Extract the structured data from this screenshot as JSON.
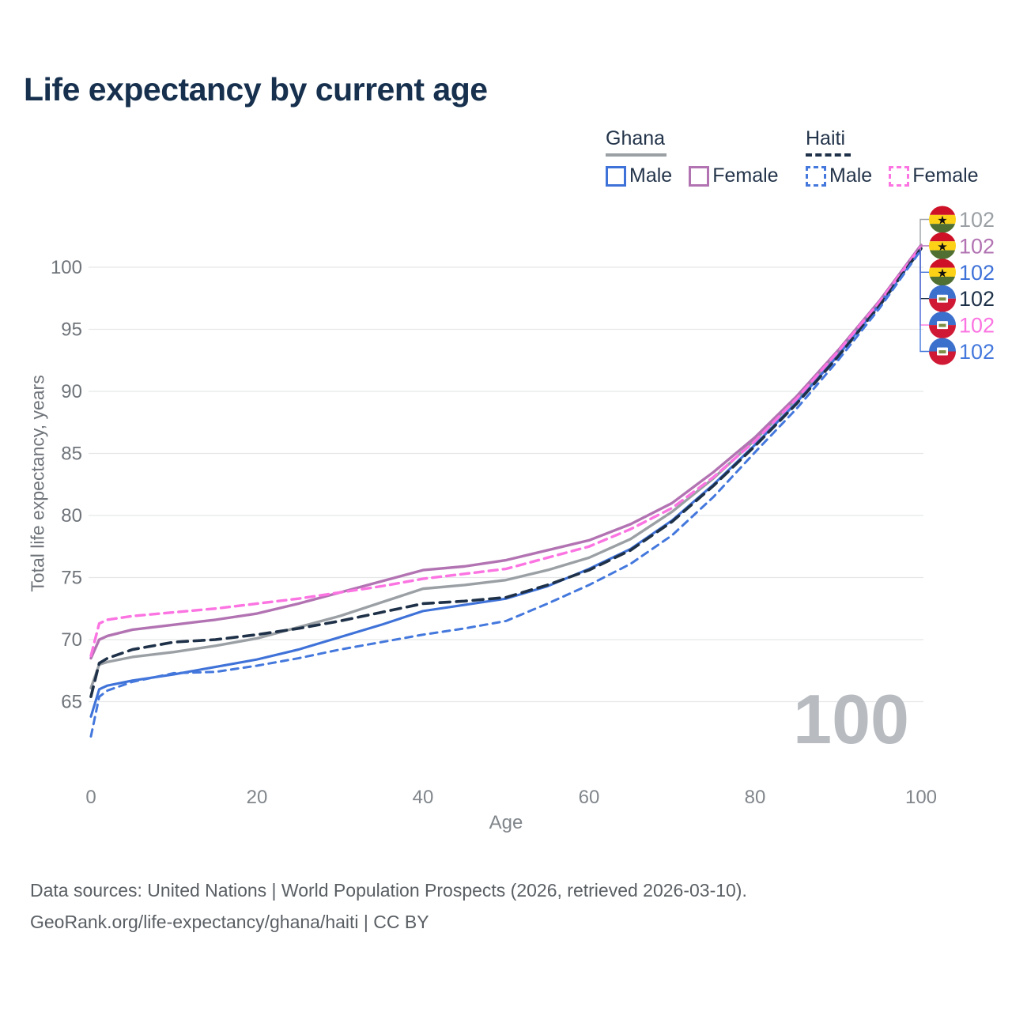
{
  "title": "Life expectancy by current age",
  "watermark": "100",
  "legend": {
    "groups": [
      {
        "label": "Ghana",
        "style": "solid",
        "items": [
          {
            "label": "Male"
          },
          {
            "label": "Female"
          }
        ]
      },
      {
        "label": "Haiti",
        "style": "dashed",
        "items": [
          {
            "label": "Male"
          },
          {
            "label": "Female"
          }
        ]
      }
    ]
  },
  "footer": {
    "line1": "Data sources: United Nations | World Population Prospects (2026, retrieved 2026-03-10).",
    "line2": "GeoRank.org/life-expectancy/ghana/haiti | CC BY"
  },
  "colors": {
    "ghana_all": "#9ba0a5",
    "ghana_female": "#b273b2",
    "ghana_male": "#3f72d8",
    "haiti_all": "#1e3148",
    "haiti_female": "#fb74e2",
    "haiti_male": "#4478dd",
    "grid": "#e5e6e8",
    "axis_text": "#81868b",
    "title_text": "#16304e",
    "watermark": "#b8bcc1"
  },
  "chart_data": {
    "type": "line",
    "title": "Life expectancy by current age",
    "xlabel": "Age",
    "ylabel": "Total life expectancy, years",
    "xlim": [
      0,
      100
    ],
    "ylim": [
      62,
      102
    ],
    "x_ticks": [
      0,
      20,
      40,
      60,
      80,
      100
    ],
    "y_ticks": [
      65,
      70,
      75,
      80,
      85,
      90,
      95,
      100
    ],
    "grid": true,
    "legend_position": "top-right",
    "x": [
      0,
      1,
      2,
      5,
      10,
      15,
      20,
      25,
      30,
      35,
      40,
      45,
      50,
      55,
      60,
      65,
      70,
      75,
      80,
      85,
      90,
      95,
      100
    ],
    "series": [
      {
        "name": "Ghana",
        "sex": "all",
        "flag": "ghana",
        "style": "solid",
        "color_key": "ghana_all",
        "end_label": "102",
        "values": [
          66.1,
          68.0,
          68.2,
          68.6,
          69.0,
          69.5,
          70.1,
          71.0,
          71.9,
          73.0,
          74.1,
          74.4,
          74.8,
          75.6,
          76.6,
          78.1,
          80.3,
          83.0,
          86.1,
          89.4,
          93.1,
          97.1,
          101.6
        ]
      },
      {
        "name": "Ghana Female",
        "sex": "female",
        "flag": "ghana",
        "style": "solid",
        "color_key": "ghana_female",
        "end_label": "102",
        "values": [
          68.5,
          70.0,
          70.3,
          70.8,
          71.2,
          71.6,
          72.1,
          72.9,
          73.8,
          74.7,
          75.6,
          75.9,
          76.4,
          77.2,
          78.0,
          79.3,
          81.0,
          83.5,
          86.3,
          89.6,
          93.3,
          97.3,
          101.8
        ]
      },
      {
        "name": "Ghana Male",
        "sex": "male",
        "flag": "ghana",
        "style": "solid",
        "color_key": "ghana_male",
        "end_label": "102",
        "values": [
          63.8,
          66.0,
          66.3,
          66.7,
          67.2,
          67.8,
          68.4,
          69.2,
          70.2,
          71.2,
          72.3,
          72.8,
          73.3,
          74.3,
          75.7,
          77.3,
          79.6,
          82.5,
          85.7,
          89.1,
          92.9,
          97.0,
          101.5
        ]
      },
      {
        "name": "Haiti",
        "sex": "all",
        "flag": "haiti",
        "style": "dashed",
        "color_key": "haiti_all",
        "end_label": "102",
        "values": [
          65.4,
          68.1,
          68.5,
          69.2,
          69.8,
          70.0,
          70.4,
          70.9,
          71.5,
          72.2,
          72.9,
          73.1,
          73.4,
          74.4,
          75.6,
          77.2,
          79.5,
          82.4,
          85.6,
          89.0,
          92.8,
          96.9,
          101.5
        ]
      },
      {
        "name": "Haiti Female",
        "sex": "female",
        "flag": "haiti",
        "style": "dashed",
        "color_key": "haiti_female",
        "end_label": "102",
        "values": [
          68.7,
          71.3,
          71.6,
          71.9,
          72.2,
          72.5,
          72.9,
          73.3,
          73.8,
          74.3,
          74.9,
          75.3,
          75.7,
          76.6,
          77.5,
          78.9,
          80.6,
          83.1,
          86.0,
          89.4,
          93.2,
          97.2,
          101.7
        ]
      },
      {
        "name": "Haiti Male",
        "sex": "male",
        "flag": "haiti",
        "style": "dashed",
        "color_key": "haiti_male",
        "end_label": "102",
        "values": [
          62.2,
          65.4,
          65.9,
          66.6,
          67.3,
          67.4,
          67.9,
          68.5,
          69.2,
          69.8,
          70.4,
          70.9,
          71.5,
          72.9,
          74.4,
          76.1,
          78.4,
          81.5,
          85.1,
          88.6,
          92.5,
          96.7,
          101.4
        ]
      }
    ]
  }
}
